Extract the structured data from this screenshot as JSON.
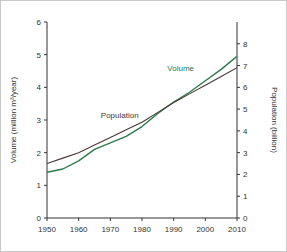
{
  "chart_data": {
    "type": "line",
    "x": [
      1950,
      1955,
      1960,
      1965,
      1970,
      1975,
      1980,
      1985,
      1990,
      1995,
      2000,
      2005,
      2010
    ],
    "xlim": [
      1950,
      2010
    ],
    "xticks": [
      1950,
      1960,
      1970,
      1980,
      1990,
      2000,
      2010
    ],
    "ylim": [
      0,
      6
    ],
    "yticks": [
      0,
      1,
      2,
      3,
      4,
      5,
      6
    ],
    "y2lim": [
      0,
      9
    ],
    "y2ticks": [
      0,
      1,
      2,
      3,
      4,
      5,
      6,
      7,
      8
    ],
    "y_label": "Volume (million m³/year)",
    "y2_label": "Population (billion)",
    "series": [
      {
        "name": "Volume",
        "color": "#2b7a4b",
        "values": [
          1.4,
          1.5,
          1.75,
          2.1,
          2.3,
          2.5,
          2.8,
          3.2,
          3.55,
          3.85,
          4.2,
          4.55,
          4.95
        ]
      },
      {
        "name": "Population",
        "color": "#4a3636",
        "axis": "y2",
        "values": [
          2.5,
          2.75,
          3.0,
          3.35,
          3.7,
          4.05,
          4.4,
          4.85,
          5.3,
          5.7,
          6.1,
          6.5,
          6.9
        ]
      }
    ]
  }
}
